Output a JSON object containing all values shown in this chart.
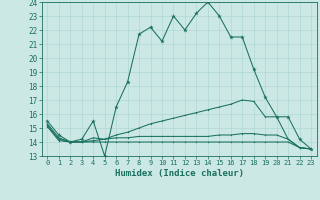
{
  "xlabel": "Humidex (Indice chaleur)",
  "bg_color": "#cce8e4",
  "grid_color": "#b0d8d4",
  "line_color": "#1a7060",
  "xlim": [
    -0.5,
    23.5
  ],
  "ylim": [
    13,
    24
  ],
  "xticks": [
    0,
    1,
    2,
    3,
    4,
    5,
    6,
    7,
    8,
    9,
    10,
    11,
    12,
    13,
    14,
    15,
    16,
    17,
    18,
    19,
    20,
    21,
    22,
    23
  ],
  "yticks": [
    13,
    14,
    15,
    16,
    17,
    18,
    19,
    20,
    21,
    22,
    23,
    24
  ],
  "line1_x": [
    0,
    1,
    2,
    3,
    4,
    5,
    6,
    7,
    8,
    9,
    10,
    11,
    12,
    13,
    14,
    15,
    16,
    17,
    18,
    19,
    20,
    21,
    22,
    23
  ],
  "line1_y": [
    15.5,
    14.5,
    14.0,
    14.2,
    15.5,
    13.0,
    16.5,
    18.3,
    21.7,
    22.2,
    21.2,
    23.0,
    22.0,
    23.2,
    24.0,
    23.0,
    21.5,
    21.5,
    19.2,
    17.2,
    15.8,
    15.8,
    14.2,
    13.5
  ],
  "line2_x": [
    0,
    1,
    2,
    3,
    4,
    5,
    6,
    7,
    8,
    9,
    10,
    11,
    12,
    13,
    14,
    15,
    16,
    17,
    18,
    19,
    20,
    21,
    22,
    23
  ],
  "line2_y": [
    15.3,
    14.3,
    14.0,
    14.0,
    14.3,
    14.2,
    14.5,
    14.7,
    15.0,
    15.3,
    15.5,
    15.7,
    15.9,
    16.1,
    16.3,
    16.5,
    16.7,
    17.0,
    16.9,
    15.8,
    15.8,
    14.2,
    13.6,
    13.5
  ],
  "line3_x": [
    0,
    1,
    2,
    3,
    4,
    5,
    6,
    7,
    8,
    9,
    10,
    11,
    12,
    13,
    14,
    15,
    16,
    17,
    18,
    19,
    20,
    21,
    22,
    23
  ],
  "line3_y": [
    15.2,
    14.2,
    14.0,
    14.0,
    14.1,
    14.2,
    14.3,
    14.3,
    14.4,
    14.4,
    14.4,
    14.4,
    14.4,
    14.4,
    14.4,
    14.5,
    14.5,
    14.6,
    14.6,
    14.5,
    14.5,
    14.2,
    13.6,
    13.5
  ],
  "line4_x": [
    0,
    1,
    2,
    3,
    4,
    5,
    6,
    7,
    8,
    9,
    10,
    11,
    12,
    13,
    14,
    15,
    16,
    17,
    18,
    19,
    20,
    21,
    22,
    23
  ],
  "line4_y": [
    15.1,
    14.1,
    14.0,
    14.0,
    14.0,
    14.0,
    14.0,
    14.0,
    14.0,
    14.0,
    14.0,
    14.0,
    14.0,
    14.0,
    14.0,
    14.0,
    14.0,
    14.0,
    14.0,
    14.0,
    14.0,
    14.0,
    13.6,
    13.5
  ]
}
